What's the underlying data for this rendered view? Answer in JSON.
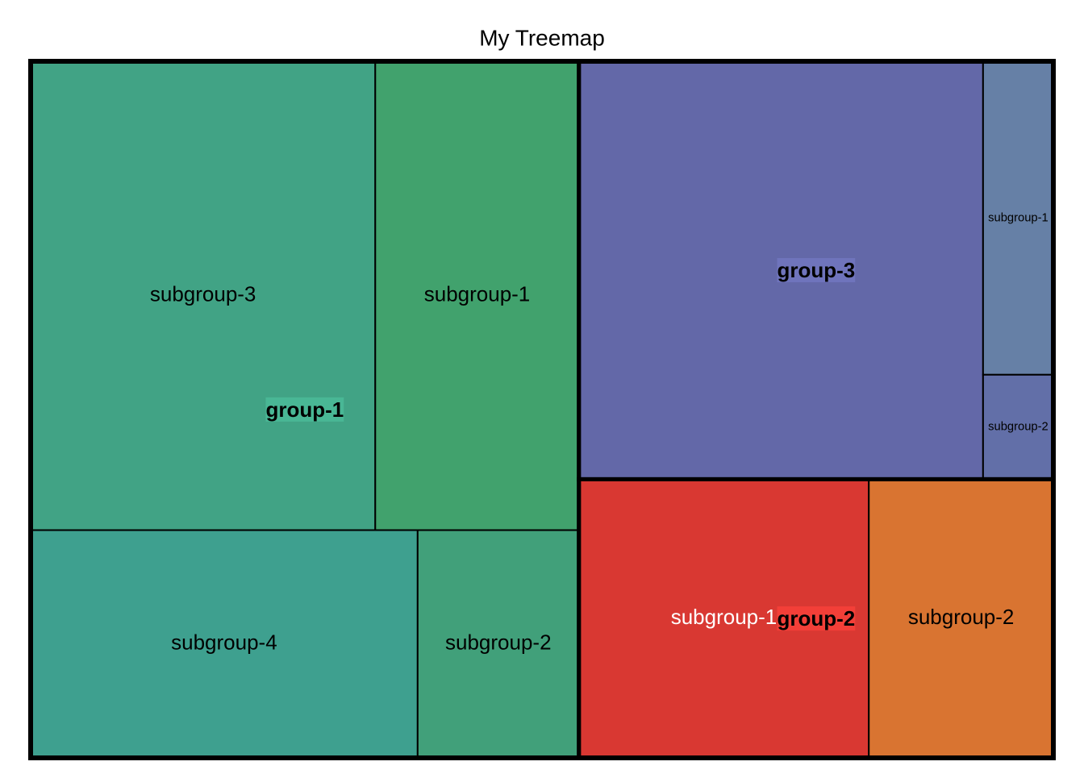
{
  "chart_data": {
    "type": "treemap",
    "title": "My Treemap",
    "groups": [
      {
        "name": "group-1",
        "children": [
          {
            "name": "subgroup-3",
            "value": 22,
            "color": "#41a385"
          },
          {
            "name": "subgroup-1",
            "value": 13,
            "color": "#41a26d"
          },
          {
            "name": "subgroup-4",
            "value": 12,
            "color": "#3ea08f"
          },
          {
            "name": "subgroup-2",
            "value": 5,
            "color": "#41a07a"
          }
        ]
      },
      {
        "name": "group-3",
        "children": [
          {
            "name": null,
            "value": 23,
            "color": "#6368a8"
          },
          {
            "name": "subgroup-1",
            "value": 3,
            "color": "#6680a6"
          },
          {
            "name": "subgroup-2",
            "value": 1,
            "color": "#626fa8"
          }
        ]
      },
      {
        "name": "group-2",
        "children": [
          {
            "name": "subgroup-1",
            "value": 11,
            "color": "#d93832",
            "text_color": "#ffffff"
          },
          {
            "name": "subgroup-2",
            "value": 7,
            "color": "#d97431"
          }
        ]
      }
    ]
  }
}
